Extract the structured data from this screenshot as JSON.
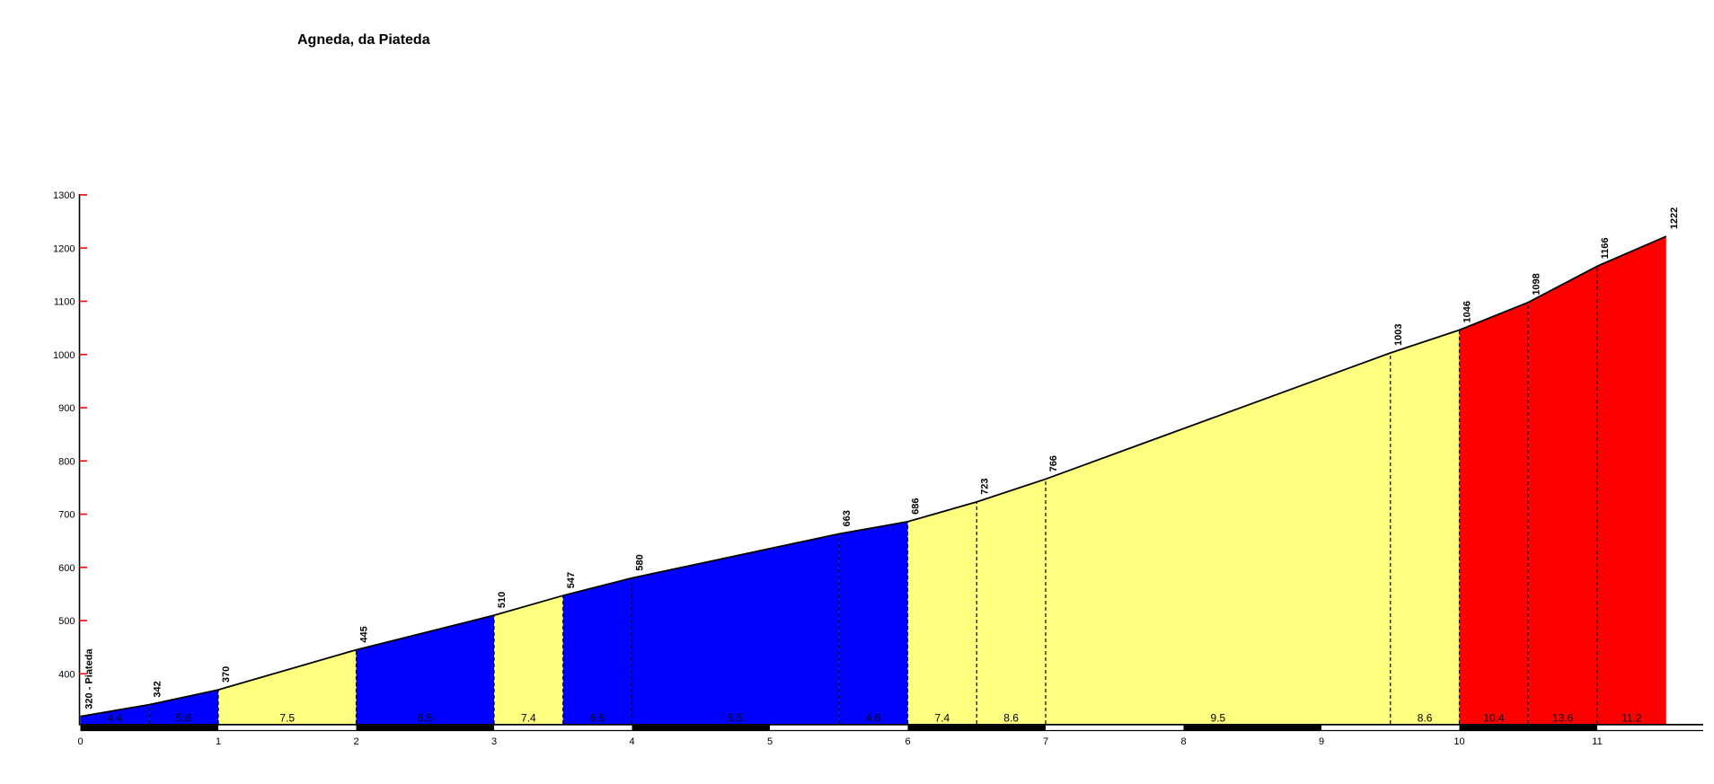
{
  "title": "Agneda, da Piateda",
  "chart_data": {
    "type": "area",
    "title": "Agneda, da Piateda",
    "x_unit": "km",
    "y_unit": "m",
    "start_label": "320 - Piateda",
    "start_elevation": 320,
    "summit_elevation": 1222,
    "total_distance_km": 11.5,
    "grid": false,
    "legend": false,
    "ylim": [
      306,
      1300
    ],
    "xlim": [
      0,
      11.77
    ],
    "y_ticks": [
      400,
      500,
      600,
      700,
      800,
      900,
      1000,
      1100,
      1200,
      1300
    ],
    "x_ticks": [
      0,
      1,
      2,
      3,
      4,
      5,
      6,
      7,
      8,
      9,
      10,
      11
    ],
    "axis_color": "#000000",
    "tick_color": "#ff0000",
    "color_map": {
      "blue": "#0000ff",
      "yellow": "#ffff80",
      "red": "#ff0000"
    },
    "segments": [
      {
        "from": 0,
        "to": 0.5,
        "elev_from": 320,
        "elev_to": 342,
        "gradient": "4.4",
        "color": "blue"
      },
      {
        "from": 0.5,
        "to": 1,
        "elev_from": 342,
        "elev_to": 370,
        "gradient": "5.6",
        "color": "blue"
      },
      {
        "from": 1,
        "to": 2,
        "elev_from": 370,
        "elev_to": 445,
        "gradient": "7.5",
        "color": "yellow"
      },
      {
        "from": 2,
        "to": 3,
        "elev_from": 445,
        "elev_to": 510,
        "gradient": "6.5",
        "color": "blue"
      },
      {
        "from": 3,
        "to": 3.5,
        "elev_from": 510,
        "elev_to": 547,
        "gradient": "7.4",
        "color": "yellow"
      },
      {
        "from": 3.5,
        "to": 4,
        "elev_from": 547,
        "elev_to": 580,
        "gradient": "6.6",
        "color": "blue"
      },
      {
        "from": 4,
        "to": 5.5,
        "elev_from": 580,
        "elev_to": 663,
        "gradient": "5.5",
        "color": "blue"
      },
      {
        "from": 5.5,
        "to": 6,
        "elev_from": 663,
        "elev_to": 686,
        "gradient": "4.6",
        "color": "blue"
      },
      {
        "from": 6,
        "to": 6.5,
        "elev_from": 686,
        "elev_to": 723,
        "gradient": "7.4",
        "color": "yellow"
      },
      {
        "from": 6.5,
        "to": 7,
        "elev_from": 723,
        "elev_to": 766,
        "gradient": "8.6",
        "color": "yellow"
      },
      {
        "from": 7,
        "to": 9.5,
        "elev_from": 766,
        "elev_to": 1003,
        "gradient": "9.5",
        "color": "yellow"
      },
      {
        "from": 9.5,
        "to": 10,
        "elev_from": 1003,
        "elev_to": 1046,
        "gradient": "8.6",
        "color": "yellow"
      },
      {
        "from": 10,
        "to": 10.5,
        "elev_from": 1046,
        "elev_to": 1098,
        "gradient": "10.4",
        "color": "red"
      },
      {
        "from": 10.5,
        "to": 11,
        "elev_from": 1098,
        "elev_to": 1166,
        "gradient": "13.6",
        "color": "red"
      },
      {
        "from": 11,
        "to": 11.5,
        "elev_from": 1166,
        "elev_to": 1222,
        "gradient": "11.2",
        "color": "red"
      }
    ],
    "elevation_labels": [
      {
        "km": 0,
        "elev": 320,
        "label": "320 - Piateda"
      },
      {
        "km": 0.5,
        "elev": 342,
        "label": "342"
      },
      {
        "km": 1,
        "elev": 370,
        "label": "370"
      },
      {
        "km": 2,
        "elev": 445,
        "label": "445"
      },
      {
        "km": 3,
        "elev": 510,
        "label": "510"
      },
      {
        "km": 3.5,
        "elev": 547,
        "label": "547"
      },
      {
        "km": 4,
        "elev": 580,
        "label": "580"
      },
      {
        "km": 5.5,
        "elev": 663,
        "label": "663"
      },
      {
        "km": 6,
        "elev": 686,
        "label": "686"
      },
      {
        "km": 6.5,
        "elev": 723,
        "label": "723"
      },
      {
        "km": 7,
        "elev": 766,
        "label": "766"
      },
      {
        "km": 9.5,
        "elev": 1003,
        "label": "1003"
      },
      {
        "km": 10,
        "elev": 1046,
        "label": "1046"
      },
      {
        "km": 10.5,
        "elev": 1098,
        "label": "1098"
      },
      {
        "km": 11,
        "elev": 1166,
        "label": "1166"
      },
      {
        "km": 11.5,
        "elev": 1222,
        "label": "1222"
      }
    ],
    "km_bar": {
      "black_intervals_start_at_even_km": true,
      "black": "#000000",
      "white": "#ffffff"
    }
  }
}
